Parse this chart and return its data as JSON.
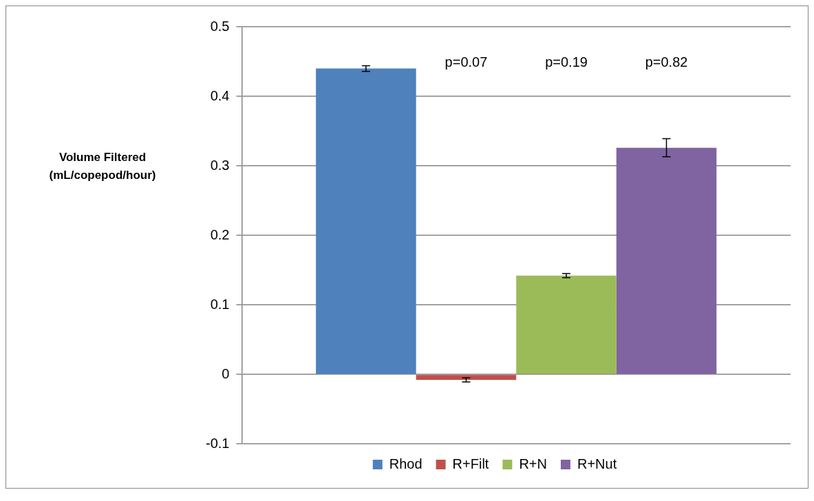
{
  "chart_data": {
    "type": "bar",
    "ylabel": "Volume Filtered (mL/copepod/hour)",
    "categories": [
      null
    ],
    "series": [
      {
        "name": "Rhod",
        "color": "#4f81bd",
        "values": [
          0.44
        ],
        "errors": [
          0.004
        ]
      },
      {
        "name": "R+Filt",
        "color": "#c0504d",
        "values": [
          -0.008
        ],
        "errors": [
          0.003
        ]
      },
      {
        "name": "R+N",
        "color": "#9bbb59",
        "values": [
          0.142
        ],
        "errors": [
          0.003
        ]
      },
      {
        "name": "R+Nut",
        "color": "#8064a2",
        "values": [
          0.326
        ],
        "errors": [
          0.013
        ]
      }
    ],
    "ylim": [
      -0.1,
      0.5
    ],
    "yticks": [
      -0.1,
      0,
      0.1,
      0.2,
      0.3,
      0.4,
      0.5
    ],
    "grid": "y",
    "legend": "bottom",
    "tick_labels": "y",
    "annotations": [
      "p=0.07",
      "p=0.19",
      "p=0.82"
    ]
  }
}
